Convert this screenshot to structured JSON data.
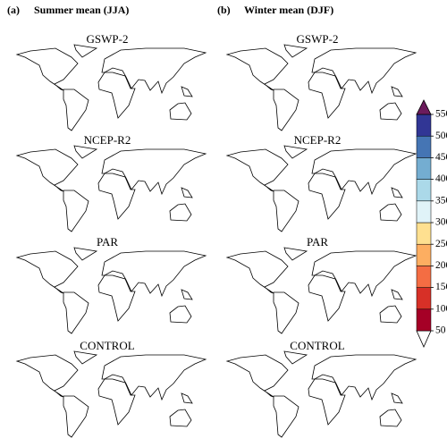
{
  "panels": [
    {
      "letter": "(a)",
      "title": "Summer mean (JJA)",
      "maps": [
        "GSWP-2",
        "NCEP-R2",
        "PAR",
        "CONTROL"
      ]
    },
    {
      "letter": "(b)",
      "title": "Winter mean (DJF)",
      "maps": [
        "GSWP-2",
        "NCEP-R2",
        "PAR",
        "CONTROL"
      ]
    }
  ],
  "colorbar": {
    "ticks": [
      50,
      100,
      150,
      200,
      250,
      300,
      350,
      400,
      450,
      500,
      550
    ],
    "colors": [
      "#ffffff",
      "#a50026",
      "#d73027",
      "#f46d43",
      "#fdae61",
      "#fee090",
      "#e0f3f8",
      "#abd9e9",
      "#74add1",
      "#4575b4",
      "#313695",
      "#6b1b5c"
    ]
  }
}
